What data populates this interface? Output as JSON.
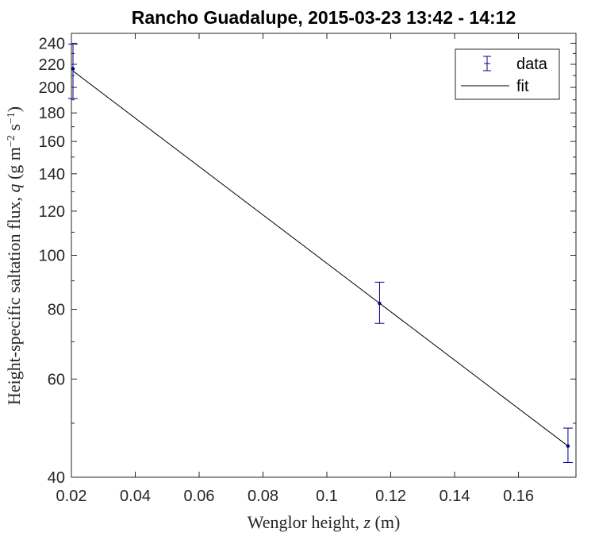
{
  "chart_data": {
    "type": "scatter",
    "title": "Rancho Guadalupe, 2015-03-23 13:42 - 14:12",
    "xlabel": {
      "pre": "Wenglor height, ",
      "var": "z",
      "post": " (m)"
    },
    "ylabel": {
      "pre": "Height-specific saltation flux, ",
      "var": "q",
      "post": " (g m",
      "exp1": "−2",
      "mid": " s",
      "exp2": "−1",
      "end": ")"
    },
    "xlim": [
      0.02,
      0.178
    ],
    "ylim": [
      40,
      250
    ],
    "yscale": "log",
    "xticks": [
      0.02,
      0.04,
      0.06,
      0.08,
      0.1,
      0.12,
      0.14,
      0.16
    ],
    "xticklabels": [
      "0.02",
      "0.04",
      "0.06",
      "0.08",
      "0.1",
      "0.12",
      "0.14",
      "0.16"
    ],
    "yticks": [
      40,
      60,
      80,
      100,
      120,
      140,
      160,
      180,
      200,
      220,
      240
    ],
    "yticklabels": [
      "40",
      "60",
      "80",
      "100",
      "120",
      "140",
      "160",
      "180",
      "200",
      "220",
      "240"
    ],
    "series": [
      {
        "name": "data",
        "kind": "errorbar",
        "color": "#00008b",
        "x": [
          0.0205,
          0.1165,
          0.1755
        ],
        "y": [
          216,
          82,
          45.5
        ],
        "yerr_low": [
          191,
          75.5,
          42.5
        ],
        "yerr_high": [
          239,
          89.5,
          49
        ]
      },
      {
        "name": "fit",
        "kind": "line",
        "color": "#000000",
        "x": [
          0.0205,
          0.1755
        ],
        "y": [
          214,
          45.5
        ]
      }
    ],
    "legend": {
      "position": "top-right",
      "entries": [
        "data",
        "fit"
      ]
    },
    "grid": false
  }
}
